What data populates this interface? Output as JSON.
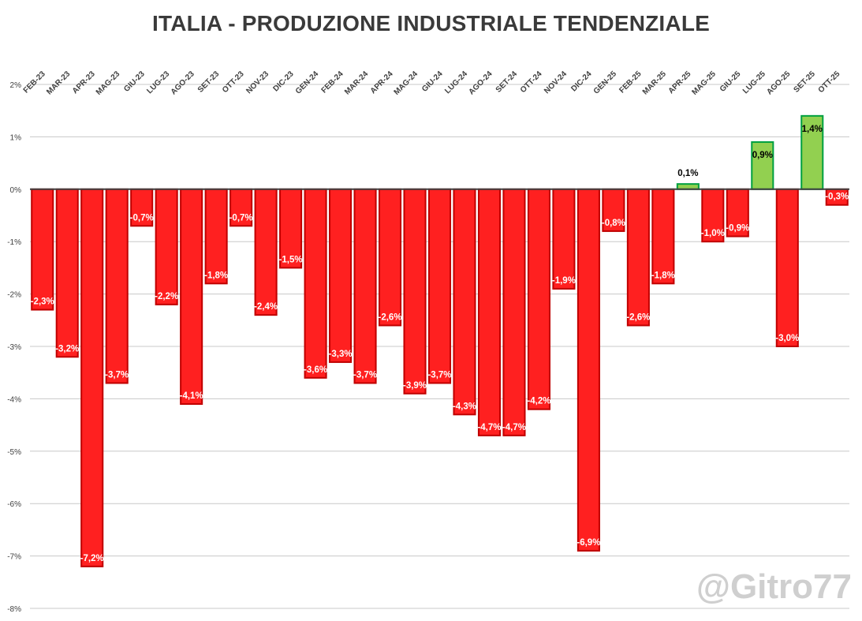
{
  "chart_data": {
    "type": "bar",
    "title": "ITALIA - PRODUZIONE INDUSTRIALE TENDENZIALE",
    "xlabel": "",
    "ylabel": "",
    "categories": [
      "FEB-23",
      "MAR-23",
      "APR-23",
      "MAG-23",
      "GIU-23",
      "LUG-23",
      "AGO-23",
      "SET-23",
      "OTT-23",
      "NOV-23",
      "DIC-23",
      "GEN-24",
      "FEB-24",
      "MAR-24",
      "APR-24",
      "MAG-24",
      "GIU-24",
      "LUG-24",
      "AGO-24",
      "SET-24",
      "OTT-24",
      "NOV-24",
      "DIC-24",
      "GEN-25",
      "FEB-25",
      "MAR-25",
      "APR-25",
      "MAG-25",
      "GIU-25",
      "LUG-25",
      "AGO-25",
      "SET-25",
      "OTT-25"
    ],
    "values": [
      -2.3,
      -3.2,
      -7.2,
      -3.7,
      -0.7,
      -2.2,
      -4.1,
      -1.8,
      -0.7,
      -2.4,
      -1.5,
      -3.6,
      -3.3,
      -3.7,
      -2.6,
      -3.9,
      -3.7,
      -4.3,
      -4.7,
      -4.7,
      -4.2,
      -1.9,
      -6.9,
      -0.8,
      -2.6,
      -1.8,
      0.1,
      -1.0,
      -0.9,
      0.9,
      -3.0,
      1.4,
      -0.3
    ],
    "data_labels": [
      "-2,3%",
      "-3,2%",
      "-7,2%",
      "-3,7%",
      "-0,7%",
      "-2,2%",
      "-4,1%",
      "-1,8%",
      "-0,7%",
      "-2,4%",
      "-1,5%",
      "-3,6%",
      "-3,3%",
      "-3,7%",
      "-2,6%",
      "-3,9%",
      "-3,7%",
      "-4,3%",
      "-4,7%",
      "-4,7%",
      "-4,2%",
      "-1,9%",
      "-6,9%",
      "-0,8%",
      "-2,6%",
      "-1,8%",
      "0,1%",
      "-1,0%",
      "-0,9%",
      "0,9%",
      "-3,0%",
      "1,4%",
      "-0,3%"
    ],
    "ylim": [
      -8,
      2
    ],
    "yticks": [
      2,
      1,
      0,
      -1,
      -2,
      -3,
      -4,
      -5,
      -6,
      -7,
      -8
    ],
    "ytick_labels": [
      "2%",
      "1%",
      "0%",
      "-1%",
      "-2%",
      "-3%",
      "-4%",
      "-5%",
      "-6%",
      "-7%",
      "-8%"
    ],
    "grid": true,
    "x_axis_position": "top",
    "legend": "none",
    "colors": {
      "negative_fill": "#ff2020",
      "negative_stroke": "#c00000",
      "positive_fill": "#92d050",
      "positive_stroke": "#00a040",
      "grid": "#c8c8c8",
      "zero_line": "#404040",
      "negative_label": "#ffffff",
      "positive_label": "#000000"
    }
  },
  "watermark": "@Gitro77"
}
